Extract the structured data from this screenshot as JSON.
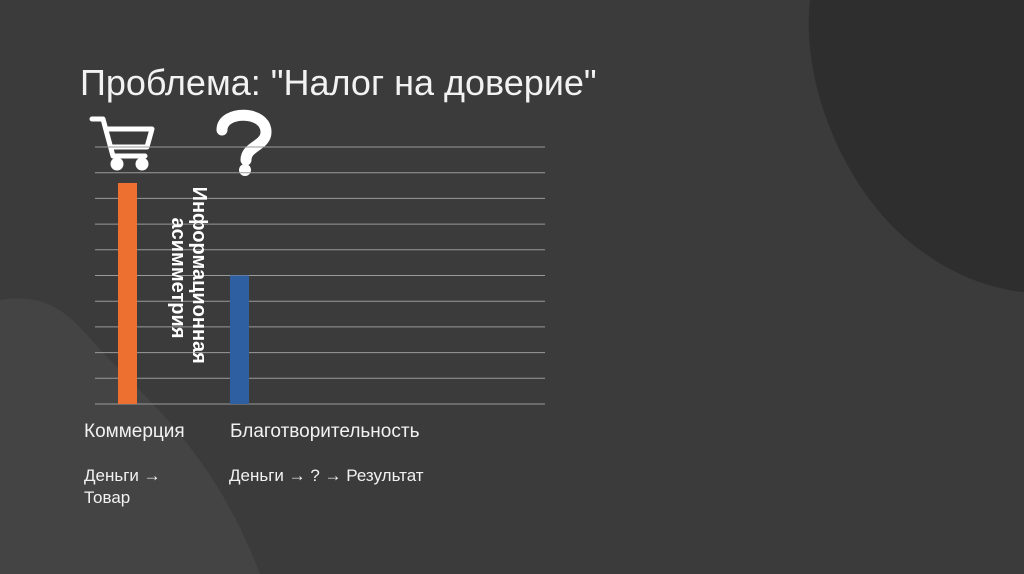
{
  "chart_data": {
    "type": "bar",
    "title": "Проблема: \"Налог на доверие\"",
    "categories": [
      "Коммерция",
      "Благотворительность"
    ],
    "values": [
      8.6,
      5.0
    ],
    "colors": [
      "#ed7031",
      "#2e5fa1"
    ],
    "ylim": [
      0,
      10
    ],
    "yticks": [
      0,
      1,
      2,
      3,
      4,
      5,
      6,
      7,
      8,
      9,
      10
    ],
    "grid": true,
    "annotation_lines": [
      "Информационная",
      "асимметрия"
    ],
    "flows": [
      "Деньги → Товар",
      "Деньги → ? → Результат"
    ]
  }
}
